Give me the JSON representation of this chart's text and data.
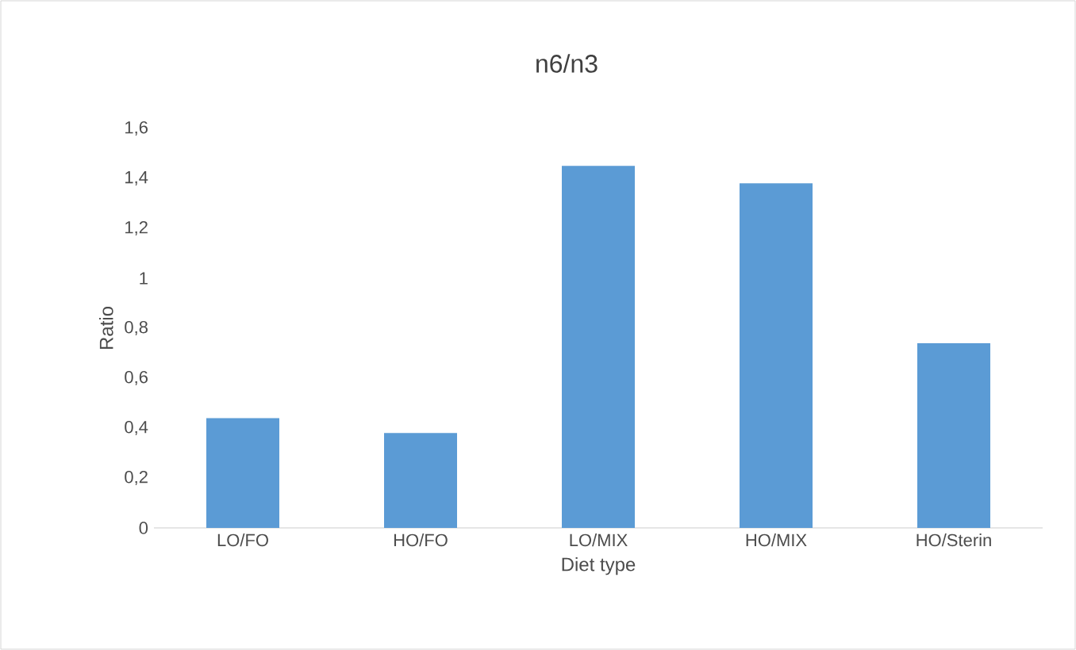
{
  "chart_data": {
    "type": "bar",
    "title": "n6/n3",
    "xlabel": "Diet type",
    "ylabel": "Ratio",
    "categories": [
      "LO/FO",
      "HO/FO",
      "LO/MIX",
      "HO/MIX",
      "HO/Sterin"
    ],
    "values": [
      0.44,
      0.38,
      1.45,
      1.38,
      0.74
    ],
    "color": "#5b9bd5",
    "ylim": [
      0,
      1.6
    ],
    "yticks": [
      {
        "value": 0,
        "label": "0"
      },
      {
        "value": 0.2,
        "label": "0,2"
      },
      {
        "value": 0.4,
        "label": "0,4"
      },
      {
        "value": 0.6,
        "label": "0,6"
      },
      {
        "value": 0.8,
        "label": "0,8"
      },
      {
        "value": 1,
        "label": "1"
      },
      {
        "value": 1.2,
        "label": "1,2"
      },
      {
        "value": 1.4,
        "label": "1,4"
      },
      {
        "value": 1.6,
        "label": "1,6"
      }
    ],
    "grid": false
  }
}
